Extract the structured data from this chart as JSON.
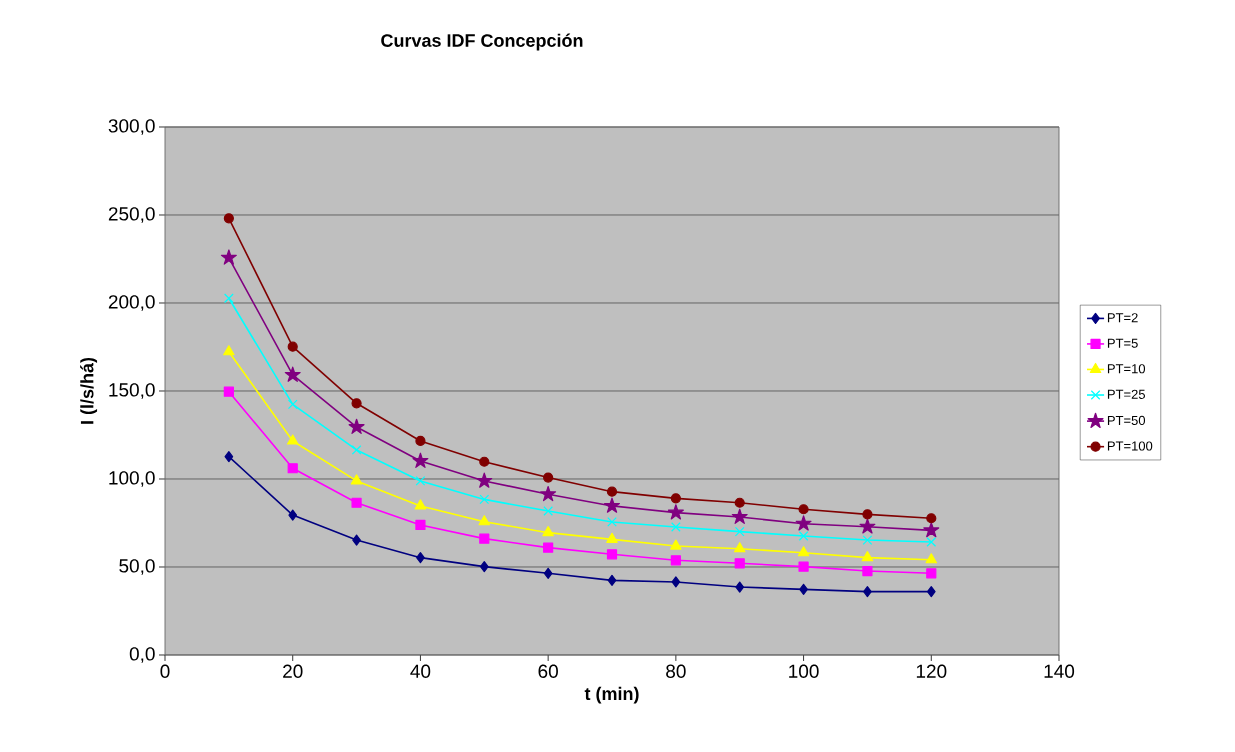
{
  "chart_data": {
    "type": "line",
    "title": "Curvas IDF Concepción",
    "xlabel": "t (min)",
    "ylabel": "I (l/s/há)",
    "x": [
      10,
      20,
      30,
      40,
      50,
      60,
      70,
      80,
      90,
      100,
      110,
      120
    ],
    "series": [
      {
        "name": "PT=2",
        "color": "#000080",
        "marker": "diamond",
        "values": [
          112.7,
          79.5,
          65.3,
          55.3,
          50.2,
          46.4,
          42.4,
          41.5,
          38.6,
          37.3,
          36.0,
          36.0
        ]
      },
      {
        "name": "PT=5",
        "color": "#ff00ff",
        "marker": "square",
        "values": [
          149.6,
          106.1,
          86.5,
          73.9,
          66.1,
          61.0,
          57.2,
          53.8,
          52.1,
          50.2,
          47.7,
          46.4
        ]
      },
      {
        "name": "PT=10",
        "color": "#ffff00",
        "marker": "triangle",
        "values": [
          172.3,
          121.6,
          98.9,
          84.7,
          75.7,
          69.5,
          65.7,
          61.9,
          60.4,
          58.1,
          55.3,
          54.1
        ]
      },
      {
        "name": "PT=25",
        "color": "#00ffff",
        "marker": "cross",
        "values": [
          202.7,
          142.4,
          116.5,
          98.9,
          88.4,
          81.8,
          75.6,
          72.7,
          70.1,
          67.6,
          65.3,
          64.2
        ]
      },
      {
        "name": "PT=50",
        "color": "#800080",
        "marker": "star",
        "values": [
          225.7,
          159.1,
          129.5,
          110.2,
          98.9,
          91.3,
          84.7,
          80.9,
          78.4,
          74.6,
          72.9,
          70.8
        ]
      },
      {
        "name": "PT=100",
        "color": "#800000",
        "marker": "circle",
        "values": [
          248.1,
          175.2,
          143.0,
          121.6,
          109.8,
          100.8,
          92.8,
          89.0,
          86.5,
          82.8,
          79.9,
          77.7
        ]
      }
    ],
    "xlim": [
      0,
      140
    ],
    "xticks": [
      0,
      20,
      40,
      60,
      80,
      100,
      120,
      140
    ],
    "ylim": [
      0,
      300
    ],
    "yticks": [
      {
        "value": 0,
        "label": "0,0"
      },
      {
        "value": 50,
        "label": "50,0"
      },
      {
        "value": 100,
        "label": "100,0"
      },
      {
        "value": 150,
        "label": "150,0"
      },
      {
        "value": 200,
        "label": "200,0"
      },
      {
        "value": 250,
        "label": "250,0"
      },
      {
        "value": 300,
        "label": "300,0"
      }
    ],
    "grid": "y",
    "legend": "right",
    "line_style": "solid"
  }
}
